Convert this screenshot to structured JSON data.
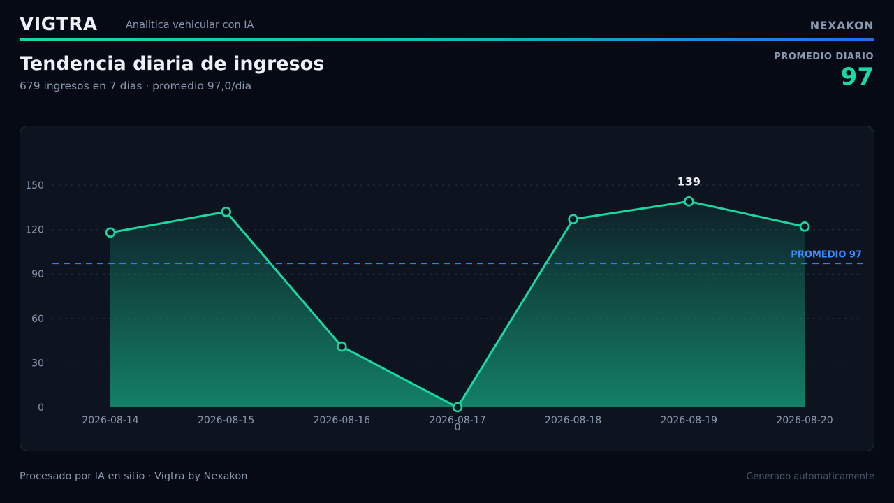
{
  "header": {
    "brand": "VIGTRA",
    "tagline": "Analitica vehicular con IA",
    "company": "NEXAKON"
  },
  "title": "Tendencia diaria de ingresos",
  "subtitle": "679 ingresos en 7 dias  ·  promedio 97,0/dia",
  "kpi": {
    "label": "PROMEDIO DIARIO",
    "value": "97"
  },
  "footer": {
    "left": "Procesado por IA en sitio · Vigtra by Nexakon",
    "right": "Generado automaticamente"
  },
  "colors": {
    "accent": "#19d8a0",
    "average_line": "#2f7ff0",
    "average_label": "#3b8cff"
  },
  "chart_data": {
    "type": "area",
    "title": "",
    "xlabel": "",
    "ylabel": "",
    "categories": [
      "2026-08-14",
      "2026-08-15",
      "2026-08-16",
      "2026-08-17",
      "2026-08-18",
      "2026-08-19",
      "2026-08-20"
    ],
    "series": [
      {
        "values": [
          118,
          132,
          41,
          0,
          127,
          139,
          122
        ]
      }
    ],
    "ylim": [
      0,
      150
    ],
    "yticks": [
      0,
      30,
      60,
      90,
      120,
      150
    ],
    "grid": true,
    "reference_line": {
      "value": 97,
      "label": "PROMEDIO 97"
    },
    "point_labels": [
      {
        "category": "2026-08-19",
        "text": "139"
      },
      {
        "category": "2026-08-17",
        "text": "0"
      }
    ]
  }
}
